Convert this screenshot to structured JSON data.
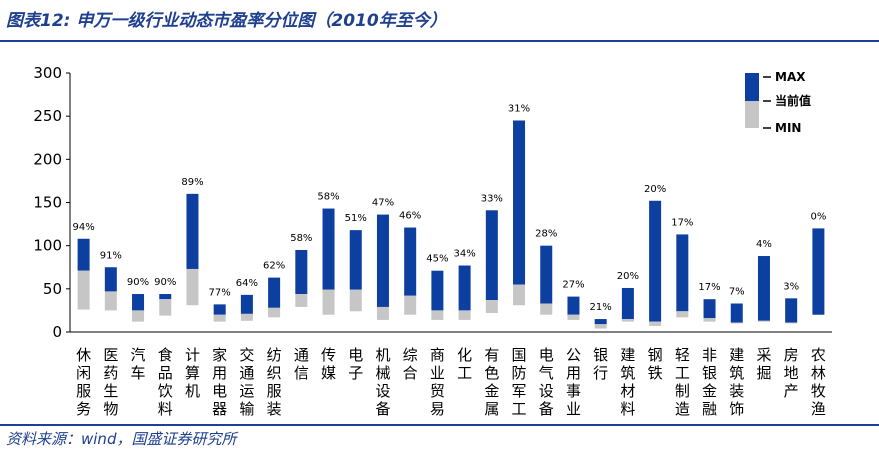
{
  "header": {
    "title": "图表12: 申万一级行业动态市盈率分位图（2010年至今）"
  },
  "footer": {
    "source": "资料来源：wind，国盛证券研究所"
  },
  "chart_data": {
    "type": "bar",
    "ylim": [
      0,
      300
    ],
    "yticks": [
      0,
      50,
      100,
      150,
      200,
      250,
      300
    ],
    "legend": {
      "position": "top-right",
      "entries": [
        "MAX",
        "当前值",
        "MIN"
      ]
    },
    "colors": {
      "upper": "#0d3fa0",
      "lower": "#c6c6c6"
    },
    "categories": [
      "休闲服务",
      "医药生物",
      "汽车",
      "食品饮料",
      "计算机",
      "家用电器",
      "交通运输",
      "纺织服装",
      "通信",
      "传媒",
      "电子",
      "机械设备",
      "综合",
      "商业贸易",
      "化工",
      "有色金属",
      "国防军工",
      "电气设备",
      "公用事业",
      "银行",
      "建筑材料",
      "钢铁",
      "轻工制造",
      "非银金融",
      "建筑装饰",
      "采掘",
      "房地产",
      "农林牧渔"
    ],
    "percentile_labels": [
      "94%",
      "91%",
      "90%",
      "90%",
      "89%",
      "77%",
      "64%",
      "62%",
      "58%",
      "58%",
      "51%",
      "47%",
      "46%",
      "45%",
      "34%",
      "33%",
      "31%",
      "28%",
      "27%",
      "21%",
      "20%",
      "20%",
      "17%",
      "17%",
      "7%",
      "4%",
      "3%",
      "0%"
    ],
    "max": [
      108,
      75,
      44,
      44,
      160,
      32,
      43,
      63,
      95,
      143,
      118,
      136,
      121,
      71,
      77,
      141,
      245,
      100,
      41,
      15,
      51,
      152,
      113,
      38,
      33,
      88,
      39,
      120
    ],
    "current": [
      71,
      47,
      25,
      38,
      73,
      20,
      21,
      28,
      44,
      49,
      49,
      29,
      42,
      25,
      25,
      37,
      55,
      33,
      20,
      9,
      15,
      12,
      24,
      16,
      11,
      13,
      11,
      20
    ],
    "min": [
      26,
      25,
      12,
      19,
      31,
      12,
      13,
      17,
      29,
      20,
      24,
      14,
      20,
      14,
      14,
      22,
      31,
      20,
      14,
      4,
      12,
      7,
      17,
      12,
      10,
      12,
      10,
      20
    ]
  }
}
